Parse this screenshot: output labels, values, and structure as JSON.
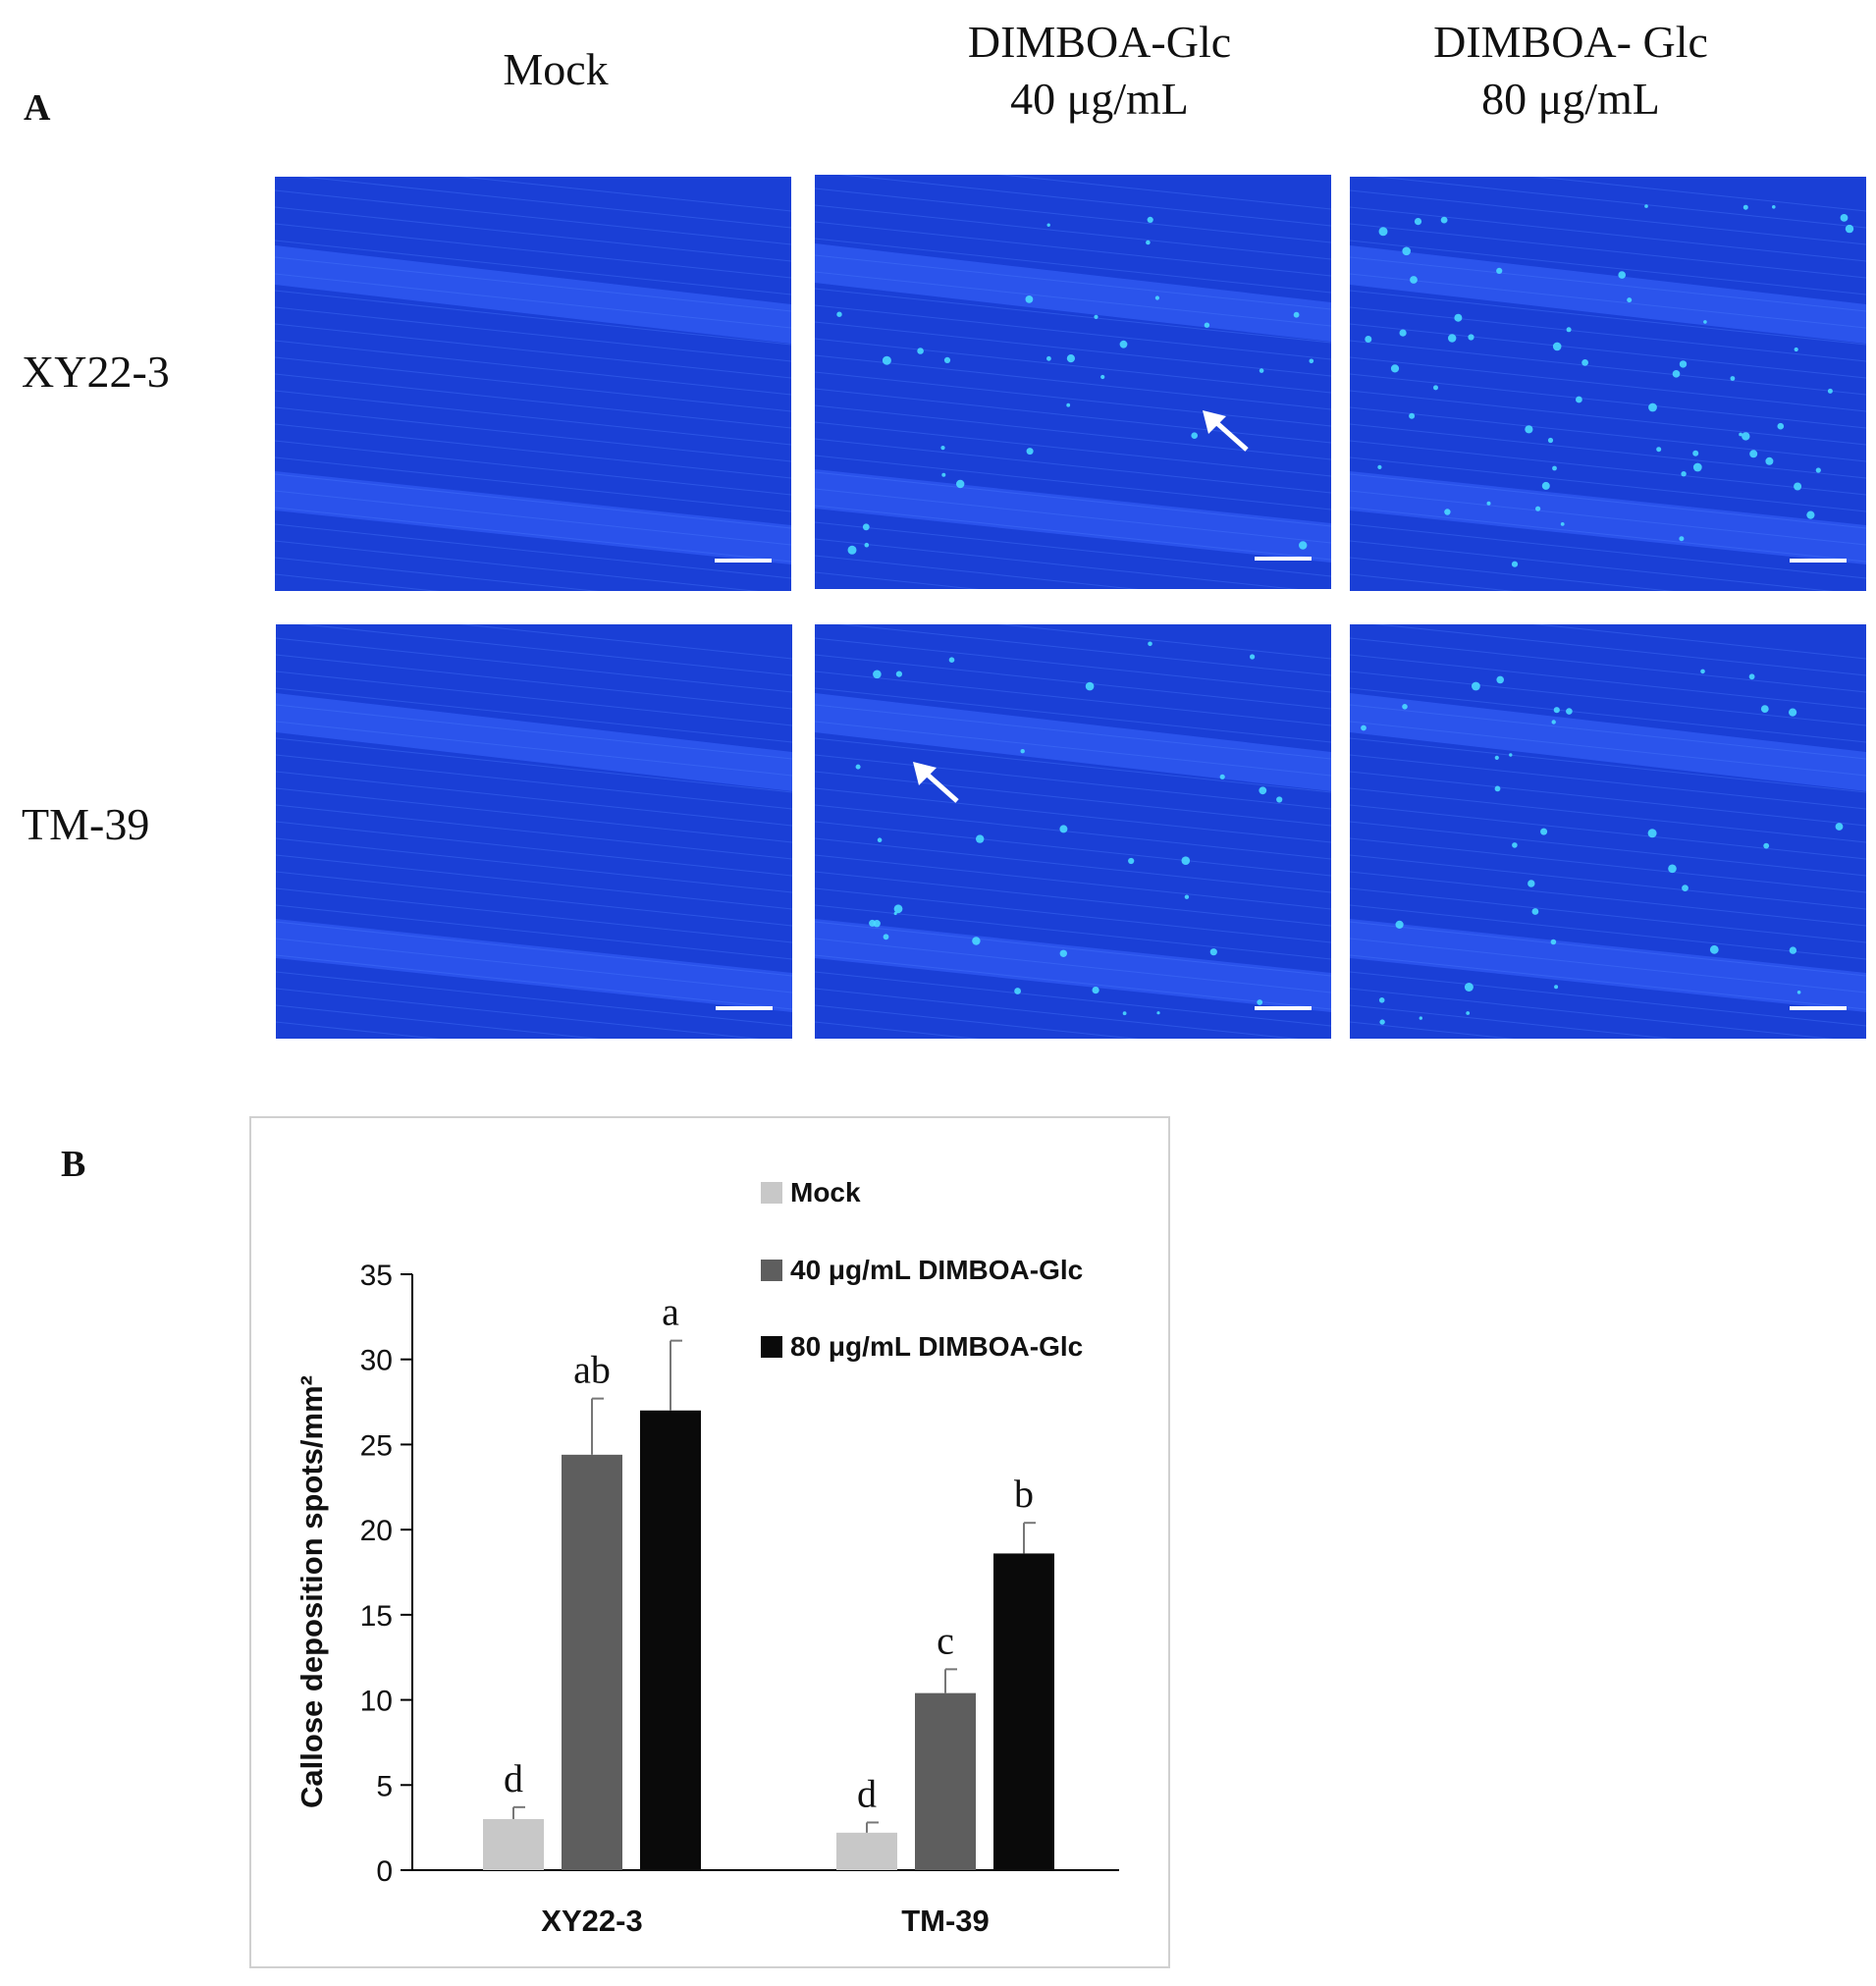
{
  "figure": {
    "panel_a_label": "A",
    "panel_b_label": "B",
    "column_headers": [
      {
        "line1": "Mock",
        "line2": ""
      },
      {
        "line1": "DIMBOA-Glc",
        "line2": "40 μg/mL"
      },
      {
        "line1": "DIMBOA- Glc",
        "line2": "80 μg/mL"
      }
    ],
    "row_labels": [
      "XY22-3",
      "TM-39"
    ],
    "image_tone": "#1a3fd6",
    "spot_color": "#4ad9ff"
  },
  "chart_data": {
    "type": "bar",
    "categories": [
      "XY22-3",
      "TM-39"
    ],
    "series": [
      {
        "name": "Mock",
        "color": "#c8c8c8",
        "values": [
          3.0,
          2.2
        ],
        "errors": [
          0.7,
          0.6
        ],
        "letters": [
          "d",
          "d"
        ]
      },
      {
        "name": "40 μg/mL DIMBOA-Glc",
        "color": "#5e5e5e",
        "values": [
          24.4,
          10.4
        ],
        "errors": [
          3.3,
          1.4
        ],
        "letters": [
          "ab",
          "c"
        ]
      },
      {
        "name": "80 μg/mL DIMBOA-Glc",
        "color": "#0a0a0a",
        "values": [
          27.0,
          18.6
        ],
        "errors": [
          4.1,
          1.8
        ],
        "letters": [
          "a",
          "b"
        ]
      }
    ],
    "ylabel": "Callose deposition spots/mm²",
    "xlabel": "",
    "ylim": [
      0,
      35
    ],
    "yticks": [
      0,
      5,
      10,
      15,
      20,
      25,
      30,
      35
    ],
    "legend_position": "top-right",
    "grid": false
  }
}
